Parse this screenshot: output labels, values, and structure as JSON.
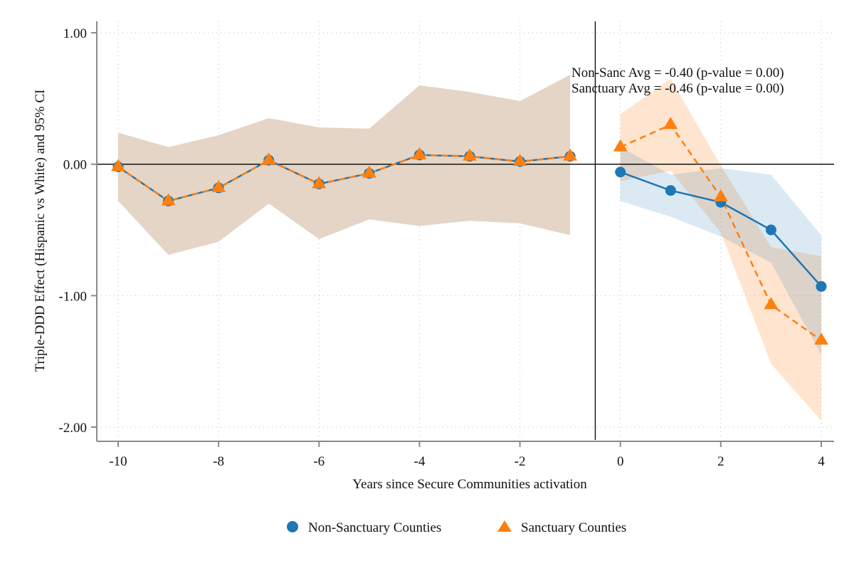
{
  "chart_data": {
    "type": "line",
    "title": "",
    "xlabel": "Years since Secure Communities activation",
    "ylabel": "Triple-DDD Effect (Hispanic vs White) and 95% CI",
    "xlim": [
      -10,
      4
    ],
    "ylim": [
      -2.0,
      1.0
    ],
    "x_ticks": [
      -10,
      -8,
      -6,
      -4,
      -2,
      0,
      2,
      4
    ],
    "x_tick_labels": [
      "-10",
      "-8",
      "-6",
      "-4",
      "-2",
      "0",
      "2",
      "4"
    ],
    "y_ticks": [
      1.0,
      0.0,
      -1.0,
      -2.0
    ],
    "y_tick_labels": [
      "1.00",
      "0.00",
      "-1.00",
      "-2.00"
    ],
    "grid": true,
    "reference_lines": {
      "horizontal_y": 0,
      "vertical_x": -0.5
    },
    "annotations": [
      "Non-Sanc Avg = -0.40 (p-value = 0.00)",
      "Sanctuary Avg = -0.46 (p-value = 0.00)"
    ],
    "legend": {
      "position": "bottom",
      "entries": [
        "Non-Sanctuary Counties",
        "Sanctuary Counties"
      ]
    },
    "series": [
      {
        "name": "Non-Sanctuary Counties",
        "marker": "circle",
        "line": "solid",
        "color": "#1f77b4",
        "ci_color": "#d6e5f1",
        "x": [
          -10,
          -9,
          -8,
          -7,
          -6,
          -5,
          -4,
          -3,
          -2,
          -1,
          0,
          1,
          2,
          3,
          4
        ],
        "y": [
          -0.02,
          -0.28,
          -0.18,
          0.03,
          -0.15,
          -0.07,
          0.07,
          0.06,
          0.02,
          0.06,
          -0.06,
          -0.2,
          -0.29,
          -0.5,
          -0.93
        ],
        "ci_upper": [
          0.24,
          0.13,
          0.22,
          0.35,
          0.28,
          0.27,
          0.6,
          0.55,
          0.48,
          0.68,
          0.13,
          -0.08,
          -0.03,
          -0.08,
          -0.54
        ],
        "ci_lower": [
          -0.28,
          -0.69,
          -0.59,
          -0.3,
          -0.57,
          -0.42,
          -0.47,
          -0.43,
          -0.45,
          -0.54,
          -0.28,
          -0.4,
          -0.55,
          -0.75,
          -1.45
        ]
      },
      {
        "name": "Sanctuary Counties",
        "marker": "triangle",
        "line": "dashed",
        "color": "#ff7f0e",
        "ci_color": "#fde2cc",
        "x": [
          -10,
          -9,
          -8,
          -7,
          -6,
          -5,
          -4,
          -3,
          -2,
          -1,
          0,
          1,
          2,
          3,
          4
        ],
        "y": [
          -0.02,
          -0.28,
          -0.18,
          0.03,
          -0.15,
          -0.07,
          0.07,
          0.06,
          0.02,
          0.06,
          0.13,
          0.3,
          -0.25,
          -1.07,
          -1.34
        ],
        "ci_upper": [
          0.24,
          0.13,
          0.22,
          0.35,
          0.28,
          0.27,
          0.6,
          0.55,
          0.48,
          0.68,
          0.38,
          0.65,
          -0.01,
          -0.63,
          -0.7
        ],
        "ci_lower": [
          -0.28,
          -0.69,
          -0.59,
          -0.3,
          -0.57,
          -0.42,
          -0.47,
          -0.43,
          -0.45,
          -0.54,
          -0.13,
          -0.05,
          -0.52,
          -1.52,
          -1.95
        ]
      }
    ]
  }
}
